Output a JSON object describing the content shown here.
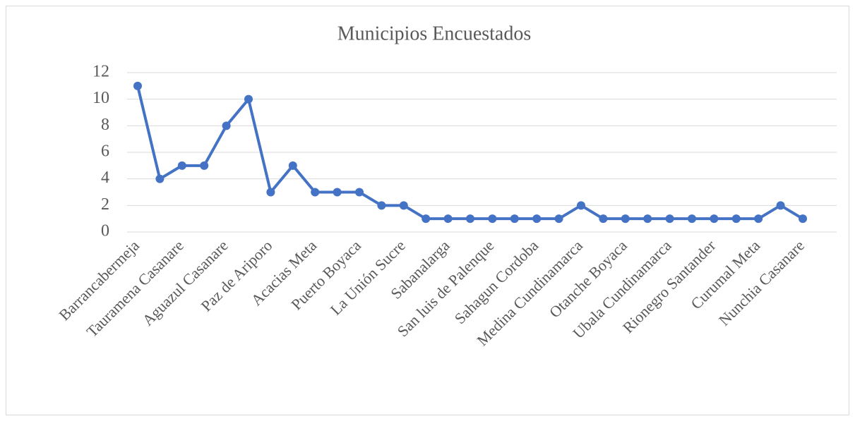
{
  "chart_data": {
    "type": "line",
    "title": "Municipios Encuestados",
    "categories": [
      "Barrancabermeja",
      null,
      "Tauramena Casanare",
      null,
      "Aguazul Casanare",
      null,
      "Paz de Ariporo",
      null,
      "Acacias Meta",
      null,
      "Puerto Boyaca",
      null,
      "La Unión Sucre",
      null,
      "Sabanalarga",
      null,
      "San luis de Palenque",
      null,
      "Sahagun Cordoba",
      null,
      "Medina Cundinamarca",
      null,
      "Otanche Boyaca",
      null,
      "Ubala Cundinamarca",
      null,
      "Rionegro Santander",
      null,
      "Curumal Meta",
      null,
      "Nunchia Casanare"
    ],
    "series": [
      {
        "name": "Municipios Encuestados",
        "color": "#4472c4",
        "values": [
          11,
          4,
          5,
          5,
          8,
          10,
          3,
          5,
          3,
          3,
          3,
          2,
          2,
          1,
          1,
          1,
          1,
          1,
          1,
          1,
          2,
          1,
          1,
          1,
          1,
          1,
          1,
          1,
          1,
          2,
          1
        ]
      }
    ],
    "ylim": [
      0,
      12
    ],
    "yticks": [
      0,
      2,
      4,
      6,
      8,
      10,
      12
    ],
    "grid": true
  }
}
